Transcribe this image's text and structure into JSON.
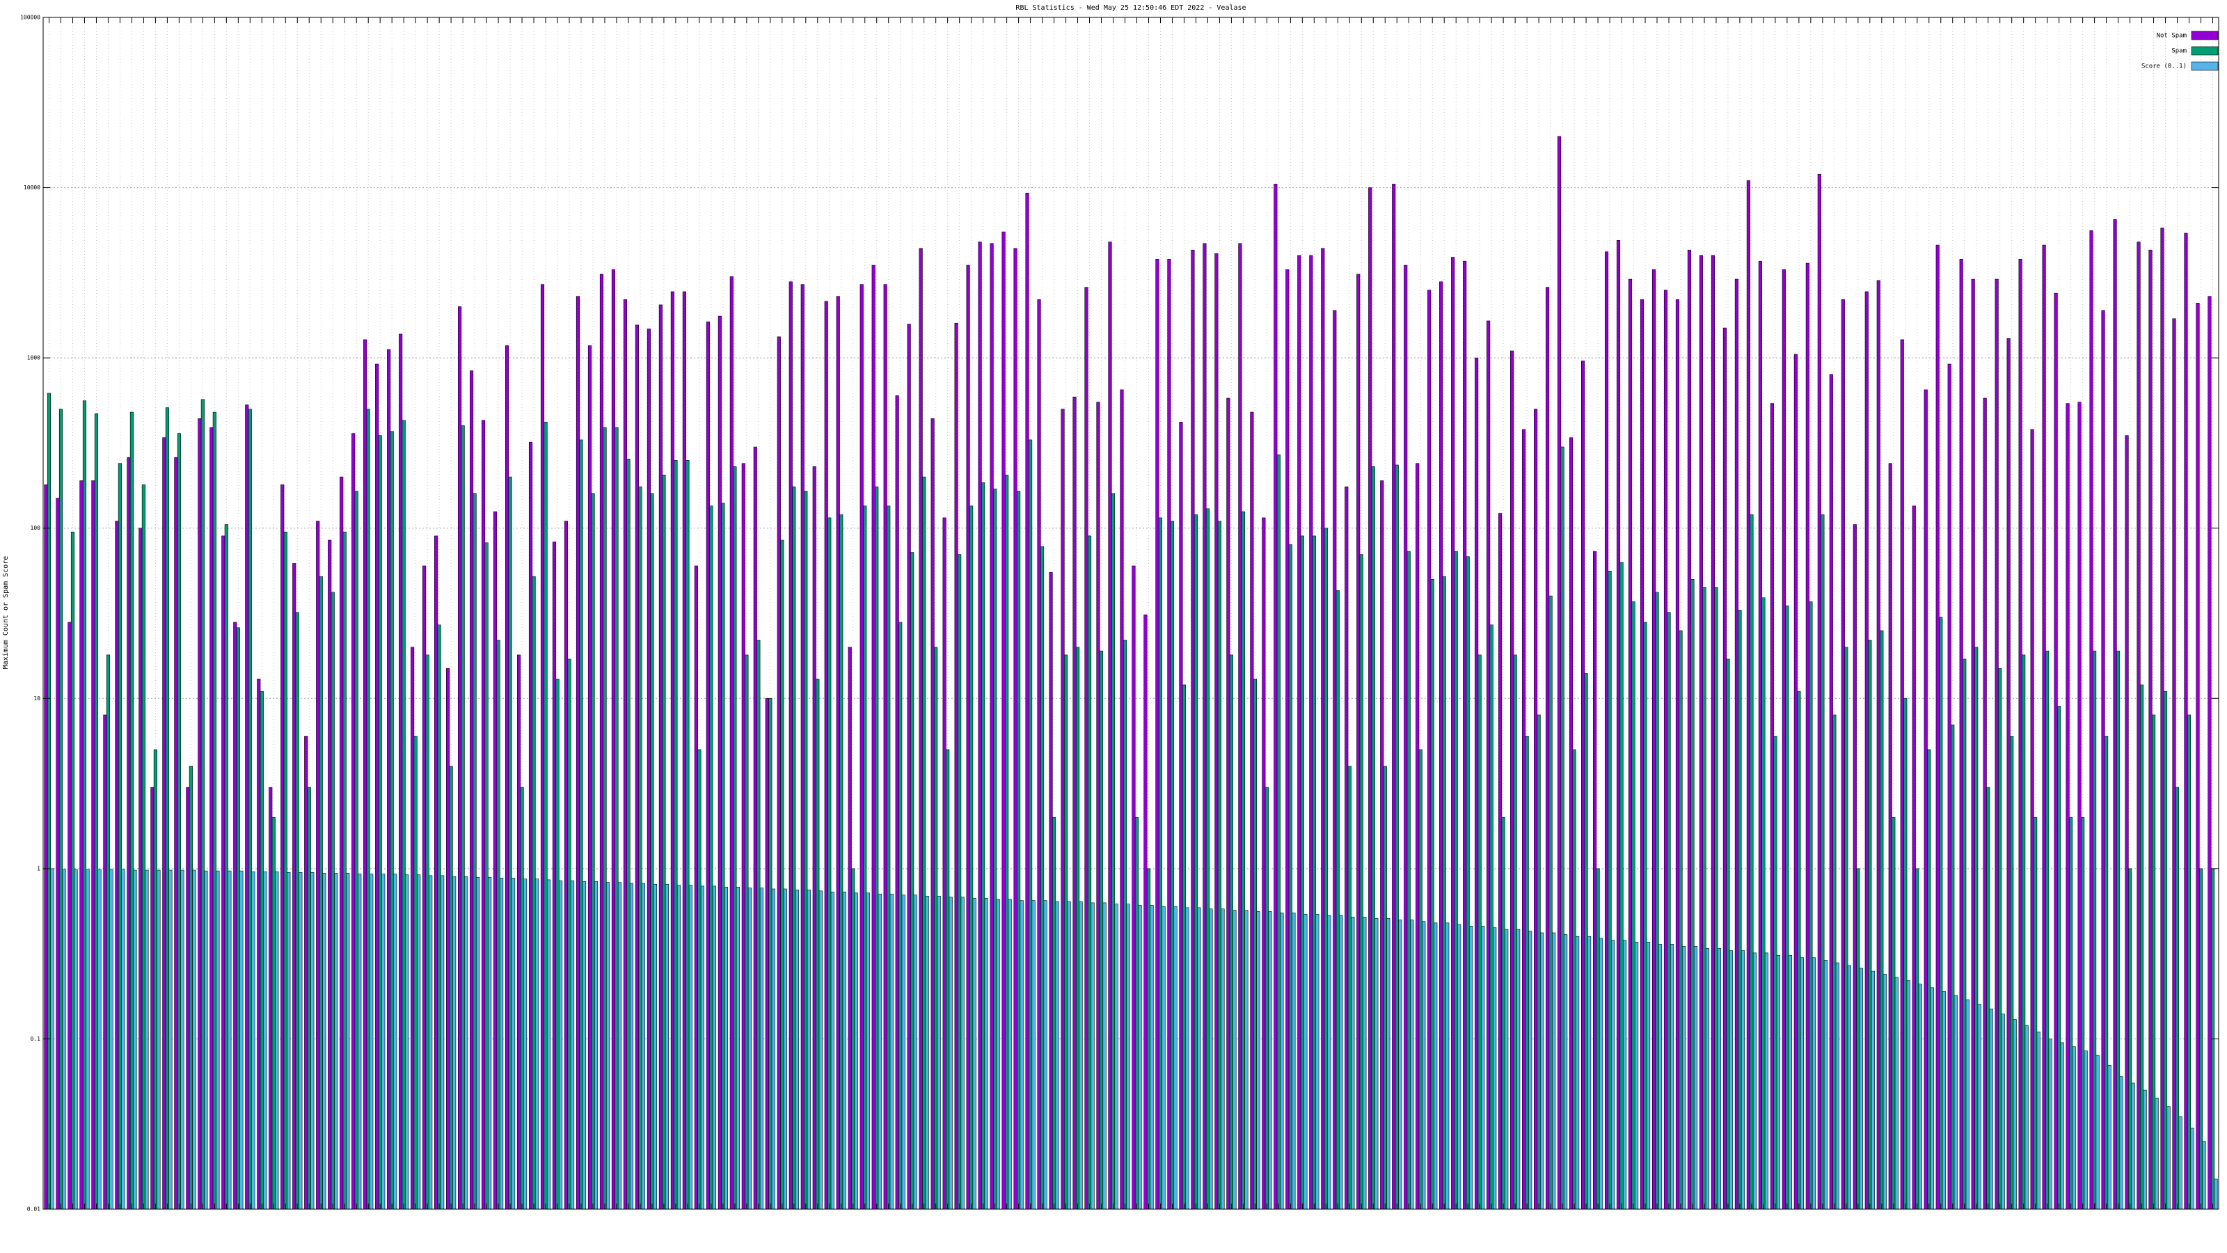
{
  "chart_data": {
    "type": "bar",
    "title": "RBL Statistics - Wed May 25 12:50:46 EDT 2022 - Vealase",
    "ylabel": "Maximum Count or Spam Score",
    "log_scale": true,
    "grid": true,
    "legend": "top-right",
    "ylim": [
      0.01,
      100000
    ],
    "yticks": [
      0.01,
      0.1,
      1,
      10,
      100,
      1000,
      10000,
      100000
    ],
    "categories": [
      null,
      null,
      null,
      null,
      null,
      null,
      null,
      null,
      null,
      null,
      null,
      null,
      null,
      null,
      null,
      null,
      null,
      null,
      null,
      null,
      null,
      null,
      null,
      null,
      null,
      null,
      null,
      null,
      null,
      null,
      null,
      null,
      null,
      null,
      null,
      null,
      null,
      null,
      null,
      null,
      null,
      null,
      null,
      null,
      null,
      null,
      null,
      null,
      null,
      null,
      null,
      null,
      null,
      null,
      null,
      null,
      null,
      null,
      null,
      null,
      null,
      null,
      null,
      null,
      null,
      null,
      null,
      null,
      null,
      null,
      null,
      null,
      null,
      null,
      null,
      null,
      null,
      null,
      null,
      null,
      null,
      null,
      null,
      null,
      null,
      null,
      null,
      null,
      null,
      null,
      null,
      null,
      null,
      null,
      null,
      null,
      null,
      null,
      null,
      null,
      null,
      null,
      null,
      null,
      null,
      null,
      null,
      null,
      null,
      null,
      null,
      null,
      null,
      null,
      null,
      null,
      null,
      null,
      null,
      null,
      null,
      null,
      null,
      null,
      null,
      null,
      null,
      null,
      null,
      null,
      null,
      null,
      null,
      null,
      null,
      null,
      null,
      null,
      null,
      null,
      null,
      null,
      null,
      null,
      null,
      null,
      null,
      null,
      null,
      null,
      null,
      null,
      null,
      null,
      null,
      null,
      null,
      null,
      null,
      null,
      null,
      null,
      null,
      null,
      null,
      null,
      null,
      null,
      null,
      null,
      null,
      null,
      null,
      null,
      null,
      null,
      null,
      null,
      null,
      null,
      null,
      null,
      null,
      null
    ],
    "series": [
      {
        "name": "Not Spam",
        "color": "#9400d3",
        "values": [
          180,
          150,
          28,
          190,
          190,
          8,
          110,
          260,
          100,
          3,
          340,
          260,
          3,
          440,
          390,
          90,
          28,
          530,
          13,
          3,
          180,
          62,
          6,
          110,
          85,
          200,
          360,
          1280,
          920,
          1120,
          1380,
          20,
          60,
          90,
          15,
          2000,
          840,
          430,
          125,
          1180,
          18,
          320,
          2700,
          83,
          110,
          2300,
          1180,
          3100,
          3300,
          2200,
          1560,
          1480,
          2050,
          2450,
          2450,
          60,
          1630,
          1760,
          3000,
          240,
          300,
          10,
          1330,
          2800,
          2700,
          230,
          2150,
          2300,
          20,
          2700,
          3500,
          2700,
          600,
          1580,
          4400,
          440,
          115,
          1600,
          3500,
          4800,
          4700,
          5500,
          4400,
          9300,
          2200,
          55,
          500,
          590,
          2600,
          550,
          4800,
          650,
          60,
          31,
          3800,
          3800,
          420,
          4300,
          4700,
          4100,
          580,
          4700,
          480,
          115,
          10500,
          3300,
          4000,
          4000,
          4400,
          1900,
          175,
          3100,
          10000,
          190,
          10500,
          3500,
          240,
          2500,
          2800,
          3900,
          3700,
          1000,
          1650,
          122,
          1100,
          380,
          500,
          2600,
          20000,
          340,
          960,
          73,
          4200,
          4900,
          2900,
          2200,
          3300,
          2500,
          2200,
          4300,
          4000,
          4000,
          1500,
          2900,
          11000,
          3700,
          540,
          3300,
          1050,
          3600,
          12000,
          800,
          2200,
          105,
          2450,
          2850,
          240,
          1280,
          135,
          650,
          4600,
          920,
          3800,
          2900,
          580,
          2900,
          1300,
          3800,
          380,
          4600,
          2400,
          540,
          550,
          5600,
          1900,
          6500,
          350,
          4800,
          4300,
          5800,
          1700,
          5400,
          2100,
          2300
        ]
      },
      {
        "name": "Spam",
        "color": "#009e73",
        "values": [
          620,
          500,
          95,
          560,
          470,
          18,
          240,
          480,
          180,
          5,
          510,
          360,
          4,
          570,
          480,
          105,
          26,
          500,
          11,
          2,
          95,
          32,
          3,
          52,
          42,
          95,
          165,
          500,
          350,
          370,
          430,
          6,
          18,
          27,
          4,
          400,
          160,
          82,
          22,
          200,
          3,
          52,
          420,
          13,
          17,
          330,
          160,
          390,
          390,
          255,
          175,
          160,
          205,
          250,
          250,
          5,
          135,
          140,
          230,
          18,
          22,
          10,
          85,
          175,
          165,
          13,
          115,
          120,
          1,
          135,
          175,
          135,
          28,
          72,
          200,
          20,
          5,
          70,
          135,
          185,
          170,
          205,
          165,
          330,
          78,
          2,
          18,
          20,
          90,
          19,
          160,
          22,
          2,
          1,
          115,
          110,
          12,
          120,
          130,
          110,
          18,
          125,
          13,
          3,
          270,
          80,
          90,
          90,
          100,
          43,
          4,
          70,
          230,
          4,
          235,
          73,
          5,
          50,
          52,
          73,
          68,
          18,
          27,
          2,
          18,
          6,
          8,
          40,
          300,
          5,
          14,
          1,
          56,
          63,
          37,
          28,
          42,
          32,
          25,
          50,
          45,
          45,
          17,
          33,
          120,
          39,
          6,
          35,
          11,
          37,
          120,
          8,
          20,
          1,
          22,
          25,
          2,
          10,
          1,
          5,
          30,
          7,
          17,
          20,
          3,
          15,
          6,
          18,
          2,
          19,
          9,
          2,
          2,
          19,
          6,
          19,
          1,
          12,
          8,
          11,
          3,
          8,
          1,
          1
        ]
      },
      {
        "name": "Score (0..1)",
        "color": "#56b4e9",
        "values": [
          1,
          0.99,
          0.99,
          0.99,
          0.99,
          0.99,
          0.99,
          0.98,
          0.98,
          0.98,
          0.98,
          0.98,
          0.98,
          0.97,
          0.97,
          0.97,
          0.97,
          0.96,
          0.96,
          0.96,
          0.95,
          0.95,
          0.95,
          0.94,
          0.94,
          0.94,
          0.93,
          0.93,
          0.93,
          0.93,
          0.92,
          0.92,
          0.91,
          0.91,
          0.9,
          0.9,
          0.89,
          0.89,
          0.88,
          0.88,
          0.87,
          0.87,
          0.86,
          0.85,
          0.85,
          0.84,
          0.84,
          0.83,
          0.83,
          0.82,
          0.82,
          0.81,
          0.81,
          0.8,
          0.8,
          0.79,
          0.79,
          0.78,
          0.78,
          0.77,
          0.77,
          0.76,
          0.76,
          0.75,
          0.75,
          0.74,
          0.73,
          0.73,
          0.72,
          0.72,
          0.71,
          0.71,
          0.7,
          0.7,
          0.69,
          0.69,
          0.68,
          0.68,
          0.67,
          0.67,
          0.66,
          0.66,
          0.65,
          0.65,
          0.65,
          0.64,
          0.64,
          0.64,
          0.63,
          0.63,
          0.62,
          0.62,
          0.61,
          0.61,
          0.6,
          0.6,
          0.59,
          0.59,
          0.58,
          0.58,
          0.57,
          0.57,
          0.56,
          0.56,
          0.55,
          0.55,
          0.54,
          0.54,
          0.53,
          0.53,
          0.52,
          0.52,
          0.51,
          0.51,
          0.5,
          0.5,
          0.49,
          0.48,
          0.48,
          0.47,
          0.46,
          0.46,
          0.45,
          0.44,
          0.44,
          0.43,
          0.42,
          0.42,
          0.41,
          0.4,
          0.4,
          0.39,
          0.38,
          0.38,
          0.37,
          0.37,
          0.36,
          0.36,
          0.35,
          0.35,
          0.34,
          0.34,
          0.33,
          0.33,
          0.32,
          0.32,
          0.31,
          0.31,
          0.3,
          0.3,
          0.29,
          0.28,
          0.27,
          0.26,
          0.25,
          0.24,
          0.23,
          0.22,
          0.21,
          0.2,
          0.19,
          0.18,
          0.17,
          0.16,
          0.15,
          0.14,
          0.13,
          0.12,
          0.11,
          0.1,
          0.095,
          0.09,
          0.085,
          0.08,
          0.07,
          0.06,
          0.055,
          0.05,
          0.045,
          0.04,
          0.035,
          0.03,
          0.025,
          0.015
        ]
      }
    ]
  }
}
